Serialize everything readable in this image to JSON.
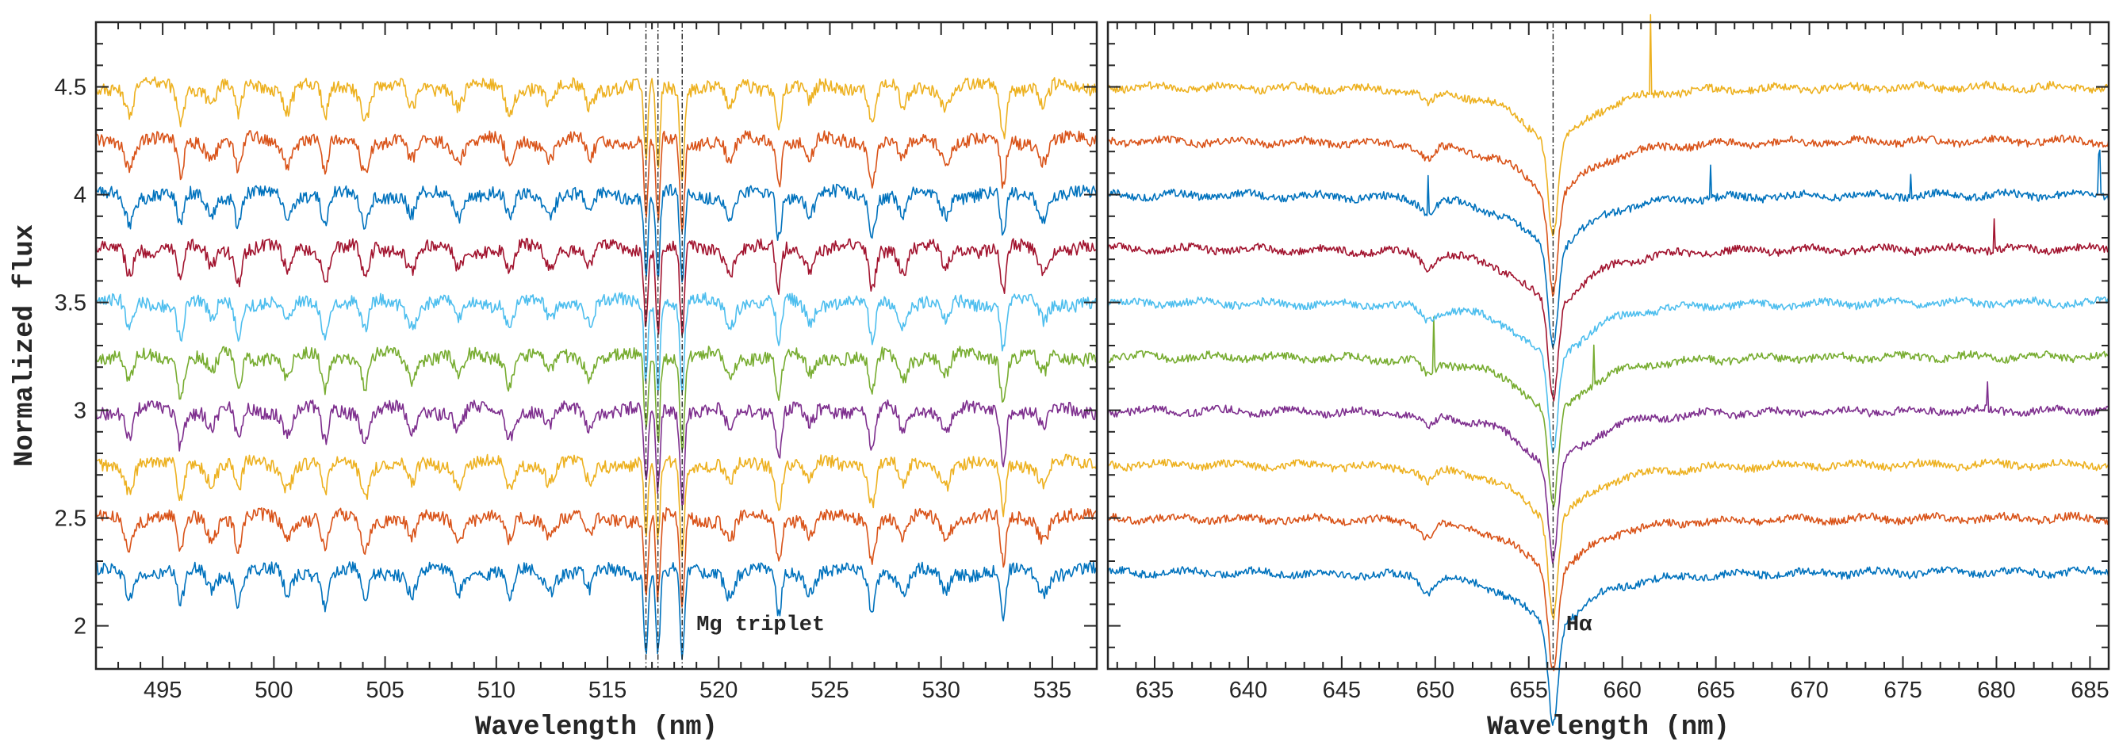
{
  "colors": [
    "#0072BD",
    "#D95319",
    "#EDB120",
    "#7E2F8E",
    "#77AC30",
    "#4DBEEE",
    "#A2142F"
  ],
  "chart_data": [
    {
      "type": "line",
      "panel": "left",
      "xlabel": "Wavelength (nm)",
      "ylabel": "Normalized flux",
      "xlim": [
        492,
        537
      ],
      "ylim": [
        1.8,
        4.8
      ],
      "xticks": [
        495,
        500,
        505,
        510,
        515,
        520,
        525,
        530,
        535
      ],
      "yticks": [
        2,
        2.5,
        3,
        3.5,
        4,
        4.5
      ],
      "ytick_labels": [
        "2",
        "2.5",
        "3",
        "3.5",
        "4",
        "4.5"
      ],
      "grid": false,
      "offsets": [
        2.25,
        2.5,
        2.75,
        3.0,
        3.25,
        3.5,
        3.75,
        4.0,
        4.25,
        4.5
      ],
      "series_colors": [
        "#0072BD",
        "#D95319",
        "#EDB120",
        "#7E2F8E",
        "#77AC30",
        "#4DBEEE",
        "#A2142F",
        "#0072BD",
        "#D95319",
        "#EDB120"
      ],
      "noise_amplitude": 0.03,
      "lines": [
        {
          "center": 493.5,
          "depth": 0.12,
          "width": 0.18
        },
        {
          "center": 495.8,
          "depth": 0.16,
          "width": 0.15
        },
        {
          "center": 497.2,
          "depth": 0.08,
          "width": 0.2
        },
        {
          "center": 498.4,
          "depth": 0.14,
          "width": 0.15
        },
        {
          "center": 500.6,
          "depth": 0.1,
          "width": 0.2
        },
        {
          "center": 502.3,
          "depth": 0.15,
          "width": 0.15
        },
        {
          "center": 504.1,
          "depth": 0.14,
          "width": 0.18
        },
        {
          "center": 506.2,
          "depth": 0.1,
          "width": 0.2
        },
        {
          "center": 508.3,
          "depth": 0.09,
          "width": 0.2
        },
        {
          "center": 510.6,
          "depth": 0.12,
          "width": 0.18
        },
        {
          "center": 512.4,
          "depth": 0.08,
          "width": 0.2
        },
        {
          "center": 514.2,
          "depth": 0.09,
          "width": 0.18
        },
        {
          "center": 516.73,
          "depth": 0.35,
          "width": 0.09
        },
        {
          "center": 517.27,
          "depth": 0.38,
          "width": 0.09
        },
        {
          "center": 518.36,
          "depth": 0.42,
          "width": 0.1
        },
        {
          "center": 520.5,
          "depth": 0.1,
          "width": 0.2
        },
        {
          "center": 522.7,
          "depth": 0.2,
          "width": 0.12
        },
        {
          "center": 524.1,
          "depth": 0.08,
          "width": 0.2
        },
        {
          "center": 526.9,
          "depth": 0.18,
          "width": 0.15
        },
        {
          "center": 528.3,
          "depth": 0.1,
          "width": 0.2
        },
        {
          "center": 530.2,
          "depth": 0.09,
          "width": 0.2
        },
        {
          "center": 532.8,
          "depth": 0.22,
          "width": 0.12
        },
        {
          "center": 534.6,
          "depth": 0.09,
          "width": 0.2
        }
      ],
      "markers": [
        516.73,
        517.27,
        518.36
      ],
      "annotation": {
        "text": "Mg triplet",
        "x": 519.0,
        "y": 1.98
      }
    },
    {
      "type": "line",
      "panel": "right",
      "xlabel": "Wavelength (nm)",
      "xlim": [
        632.5,
        686
      ],
      "ylim": [
        1.8,
        4.8
      ],
      "xticks": [
        635,
        640,
        645,
        650,
        655,
        660,
        665,
        670,
        675,
        680,
        685
      ],
      "yticks": [
        2,
        2.5,
        3,
        3.5,
        4,
        4.5
      ],
      "grid": false,
      "offsets": [
        2.25,
        2.5,
        2.75,
        3.0,
        3.25,
        3.5,
        3.75,
        4.0,
        4.25,
        4.5
      ],
      "series_colors": [
        "#0072BD",
        "#D95319",
        "#EDB120",
        "#7E2F8E",
        "#77AC30",
        "#4DBEEE",
        "#A2142F",
        "#0072BD",
        "#D95319",
        "#EDB120"
      ],
      "noise_amplitude": 0.018,
      "h_alpha": {
        "center": 656.3,
        "core_depth": 0.45,
        "wing_depth": 0.25,
        "core_width": 0.25,
        "wing_width": 2.2
      },
      "lines": [
        {
          "center": 649.6,
          "depth": 0.06,
          "width": 0.35
        }
      ],
      "spikes": [
        {
          "series": 9,
          "x": 661.5,
          "height": 0.35
        },
        {
          "series": 7,
          "x": 649.6,
          "height": 0.18
        },
        {
          "series": 7,
          "x": 664.7,
          "height": 0.15
        },
        {
          "series": 7,
          "x": 675.4,
          "height": 0.12
        },
        {
          "series": 7,
          "x": 685.5,
          "height": 0.2
        },
        {
          "series": 6,
          "x": 679.9,
          "height": 0.14
        },
        {
          "series": 4,
          "x": 649.9,
          "height": 0.25
        },
        {
          "series": 4,
          "x": 658.5,
          "height": 0.18
        },
        {
          "series": 3,
          "x": 679.5,
          "height": 0.12
        }
      ],
      "markers": [
        656.3
      ],
      "annotation": {
        "text": "Hα",
        "x": 657.0,
        "y": 1.98
      }
    }
  ]
}
